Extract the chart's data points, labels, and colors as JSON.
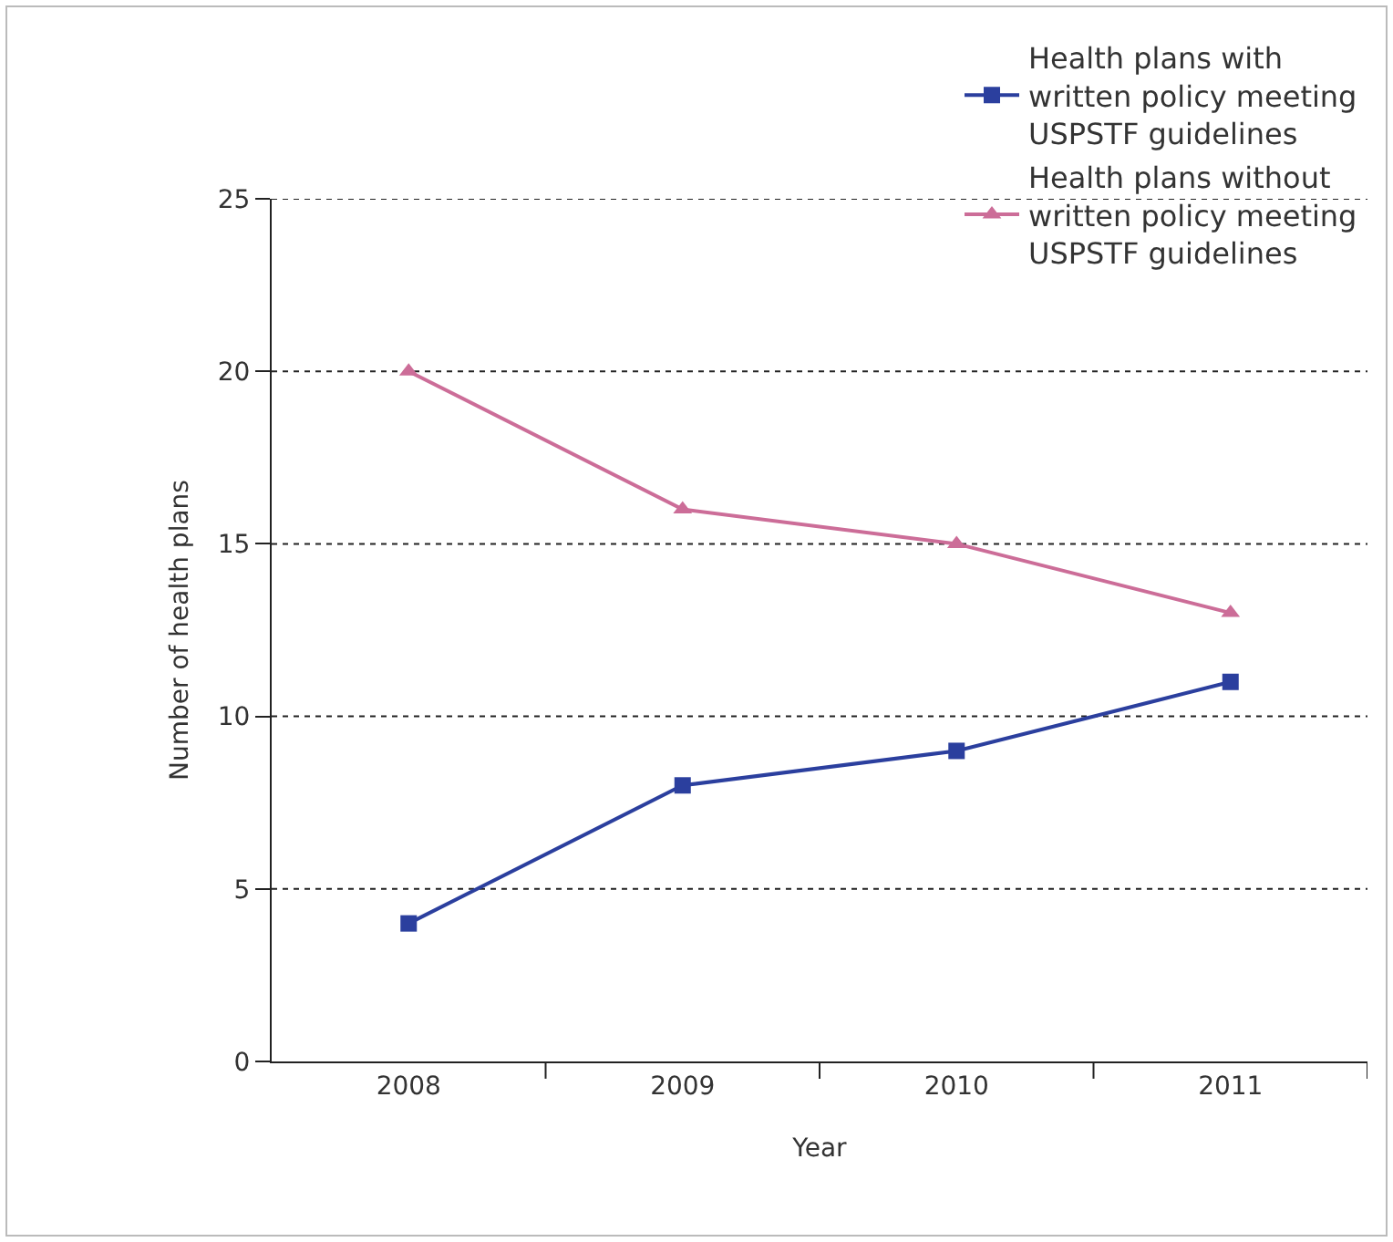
{
  "chart_data": {
    "type": "line",
    "xlabel": "Year",
    "ylabel": "Number of health plans",
    "categories": [
      "2008",
      "2009",
      "2010",
      "2011"
    ],
    "series": [
      {
        "name": "Health plans with written policy meeting USPSTF guidelines",
        "color": "#2b3f9e",
        "marker": "square",
        "values": [
          4,
          8,
          9,
          11
        ]
      },
      {
        "name": "Health plans without written policy meeting USPSTF guidelines",
        "color": "#cc6d98",
        "marker": "triangle",
        "values": [
          20,
          16,
          15,
          13
        ]
      }
    ],
    "ylim": [
      0,
      25
    ],
    "yticks": [
      0,
      5,
      10,
      15,
      20,
      25
    ],
    "grid": "y",
    "legend": "top right",
    "line_style": "solid"
  }
}
